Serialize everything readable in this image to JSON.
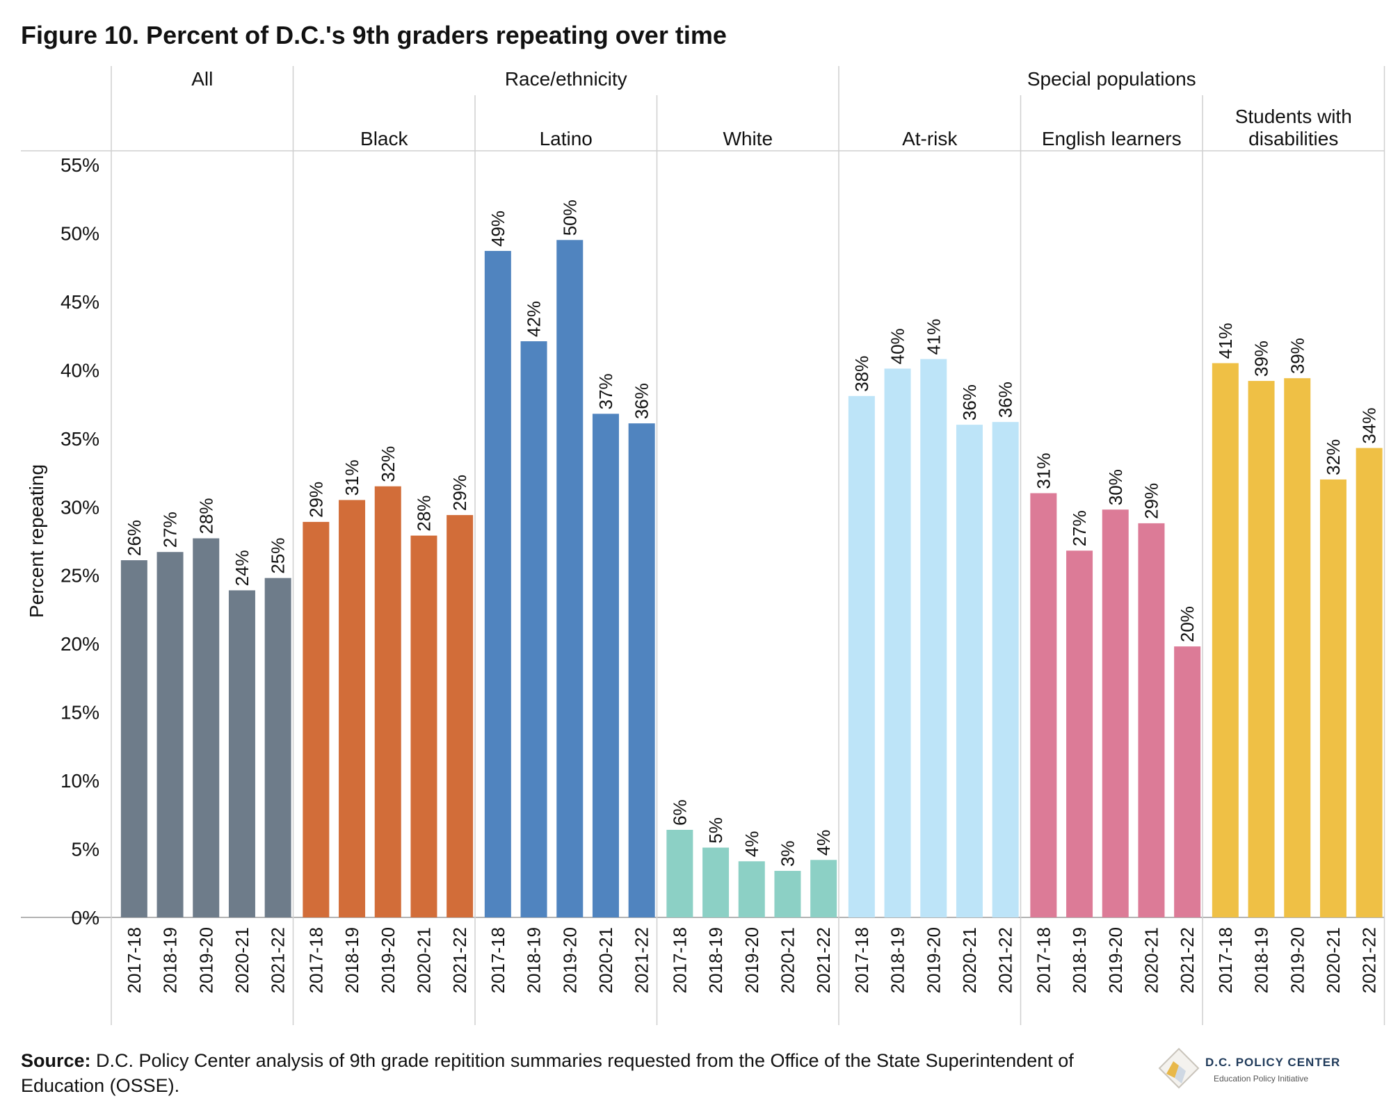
{
  "title": "Figure 10. Percent of D.C.'s 9th graders repeating over time",
  "source_label": "Source:",
  "source_text": " D.C. Policy Center analysis of 9th grade repitition summaries requested from the Office of the State Superintendent of Education (OSSE).",
  "logo": {
    "name": "D.C. POLICY CENTER",
    "subtitle": "Education Policy Initiative"
  },
  "chart_data": {
    "type": "bar",
    "ylabel": "Percent repeating",
    "ylim": [
      0,
      55
    ],
    "yticks": [
      "0%",
      "5%",
      "10%",
      "15%",
      "20%",
      "25%",
      "30%",
      "35%",
      "40%",
      "45%",
      "50%",
      "55%"
    ],
    "categories": [
      "2017-18",
      "2018-19",
      "2019-20",
      "2020-21",
      "2021-22"
    ],
    "header_groups": [
      {
        "label": "All",
        "span": 1
      },
      {
        "label": "Race/ethnicity",
        "span": 3
      },
      {
        "label": "Special populations",
        "span": 3
      }
    ],
    "series": [
      {
        "name": "",
        "color": "#6e7c8a",
        "values": [
          26.1,
          26.7,
          27.7,
          23.9,
          24.8
        ],
        "labels": [
          "26%",
          "27%",
          "28%",
          "24%",
          "25%"
        ]
      },
      {
        "name": "Black",
        "color": "#d26d39",
        "values": [
          28.9,
          30.5,
          31.5,
          27.9,
          29.4
        ],
        "labels": [
          "29%",
          "31%",
          "32%",
          "28%",
          "29%"
        ]
      },
      {
        "name": "Latino",
        "color": "#5084bf",
        "values": [
          48.7,
          42.1,
          49.5,
          36.8,
          36.1
        ],
        "labels": [
          "49%",
          "42%",
          "50%",
          "37%",
          "36%"
        ]
      },
      {
        "name": "White",
        "color": "#8cd0c5",
        "values": [
          6.4,
          5.1,
          4.1,
          3.4,
          4.2
        ],
        "labels": [
          "6%",
          "5%",
          "4%",
          "3%",
          "4%"
        ]
      },
      {
        "name": "At-risk",
        "color": "#bde4f8",
        "values": [
          38.1,
          40.1,
          40.8,
          36.0,
          36.2
        ],
        "labels": [
          "38%",
          "40%",
          "41%",
          "36%",
          "36%"
        ]
      },
      {
        "name": "English learners",
        "color": "#dc7b97",
        "values": [
          31.0,
          26.8,
          29.8,
          28.8,
          19.8
        ],
        "labels": [
          "31%",
          "27%",
          "30%",
          "29%",
          "20%"
        ]
      },
      {
        "name": "Students with disabilities",
        "color": "#efc045",
        "values": [
          40.5,
          39.2,
          39.4,
          32.0,
          34.3
        ],
        "labels": [
          "41%",
          "39%",
          "39%",
          "32%",
          "34%"
        ]
      }
    ]
  }
}
